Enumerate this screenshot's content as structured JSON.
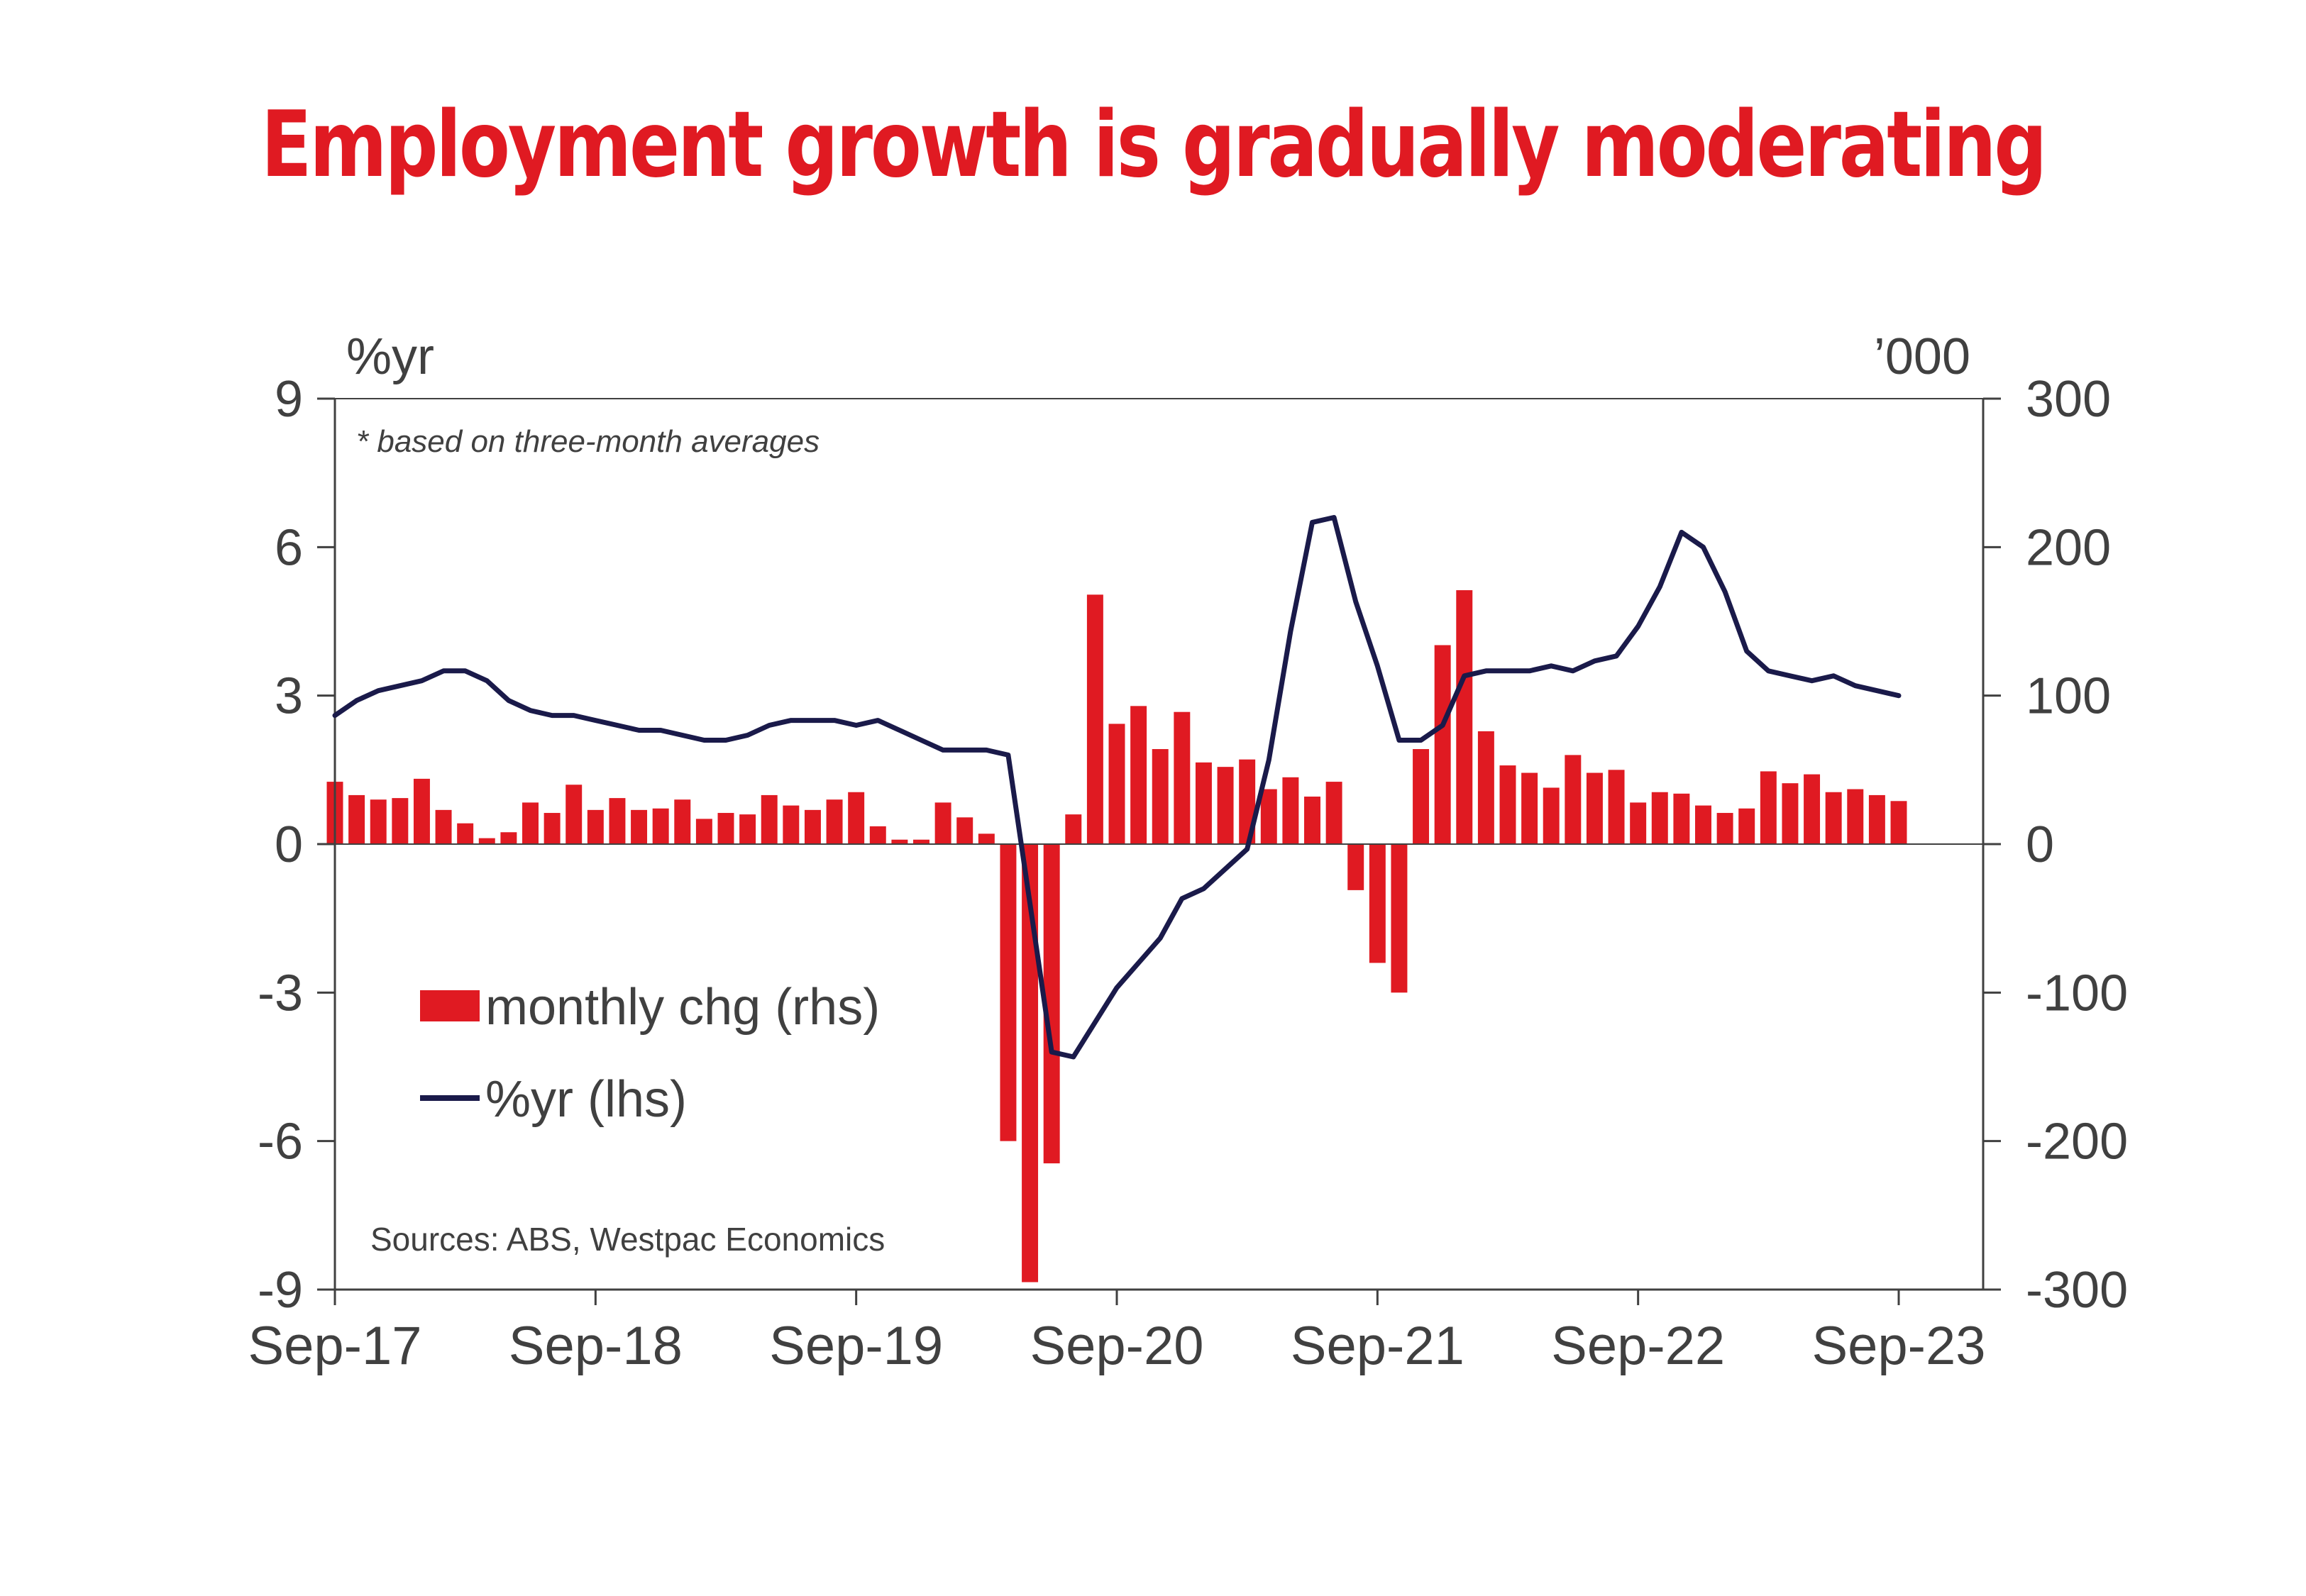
{
  "colors": {
    "title": "#e01a22",
    "bar": "#e01a22",
    "line": "#1a1a4a",
    "axis": "#404040"
  },
  "chart_data": {
    "type": "bar+line",
    "title": "Employment growth is gradually moderating",
    "left_axis_unit": "%yr",
    "right_axis_unit": "’000",
    "ylim_left": [
      -9,
      9
    ],
    "ylim_right": [
      -300,
      300
    ],
    "yticks_left": [
      "9",
      "6",
      "3",
      "0",
      "-3",
      "-6",
      "-9"
    ],
    "yticks_right": [
      "300",
      "200",
      "100",
      "0",
      "-100",
      "-200",
      "-300"
    ],
    "xticks": [
      "Sep-17",
      "Sep-18",
      "Sep-19",
      "Sep-20",
      "Sep-21",
      "Sep-22",
      "Sep-23"
    ],
    "x_start": "Sep-17",
    "x_end": "Sep-23",
    "footnote": "* based on three-month averages",
    "source": "Sources: ABS, Westpac Economics",
    "legend_position": "lower-left",
    "series": [
      {
        "name": "monthly chg (rhs)",
        "type": "bar",
        "axis": "right",
        "values": [
          42,
          33,
          30,
          31,
          44,
          23,
          14,
          4,
          8,
          28,
          21,
          40,
          23,
          31,
          23,
          24,
          30,
          17,
          21,
          20,
          33,
          26,
          23,
          30,
          35,
          12,
          3,
          3,
          28,
          18,
          7,
          -200,
          -295,
          -215,
          20,
          168,
          81,
          93,
          64,
          89,
          55,
          52,
          57,
          37,
          45,
          32,
          42,
          -31,
          -80,
          -100,
          64,
          134,
          171,
          76,
          53,
          48,
          38,
          60,
          48,
          50,
          28,
          35,
          34,
          26,
          21,
          24,
          49,
          41,
          47,
          35,
          37,
          33,
          29
        ]
      },
      {
        "name": "%yr (lhs)",
        "type": "line",
        "axis": "left",
        "values": [
          2.6,
          2.9,
          3.1,
          3.2,
          3.3,
          3.5,
          3.5,
          3.3,
          2.9,
          2.7,
          2.6,
          2.6,
          2.5,
          2.4,
          2.3,
          2.3,
          2.2,
          2.1,
          2.1,
          2.2,
          2.4,
          2.5,
          2.5,
          2.5,
          2.4,
          2.5,
          2.3,
          2.1,
          1.9,
          1.9,
          1.9,
          1.8,
          -1.2,
          -4.2,
          -4.3,
          -3.6,
          -2.9,
          -2.4,
          -1.9,
          -1.1,
          -0.9,
          -0.5,
          -0.1,
          1.7,
          4.3,
          6.5,
          6.6,
          4.9,
          3.6,
          2.1,
          2.1,
          2.4,
          3.4,
          3.5,
          3.5,
          3.5,
          3.6,
          3.5,
          3.7,
          3.8,
          4.4,
          5.2,
          6.3,
          6.0,
          5.1,
          3.9,
          3.5,
          3.4,
          3.3,
          3.4,
          3.2,
          3.1,
          3.0
        ]
      }
    ]
  }
}
